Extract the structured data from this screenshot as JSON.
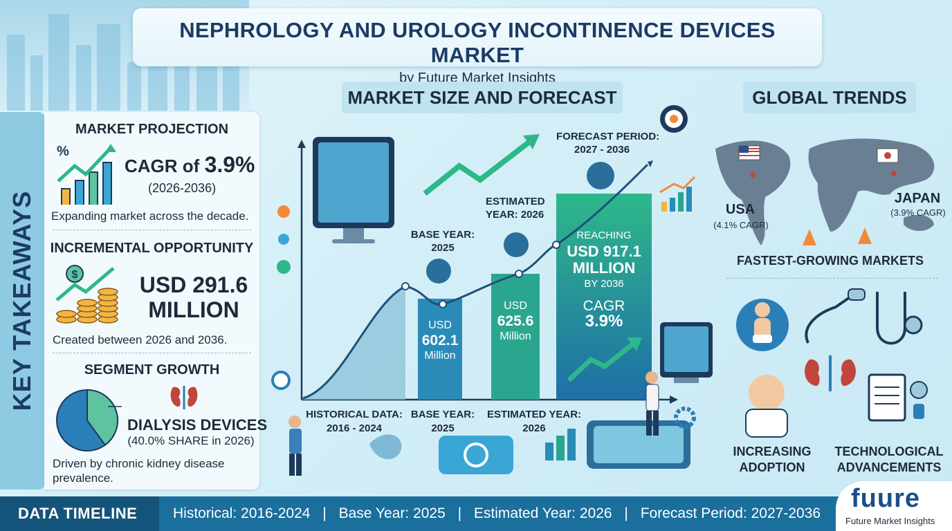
{
  "header": {
    "title": "NEPHROLOGY AND UROLOGY INCONTINENCE DEVICES MARKET",
    "subtitle": "by Future Market Insights"
  },
  "sidebar": {
    "label": "KEY TAKEAWAYS"
  },
  "key_takeaways": {
    "projection": {
      "heading": "MARKET PROJECTION",
      "cagr_prefix": "CAGR of",
      "cagr_value": "3.9%",
      "period": "(2026-2036)",
      "note": "Expanding market across the decade."
    },
    "opportunity": {
      "heading": "INCREMENTAL OPPORTUNITY",
      "value_line1": "USD 291.6",
      "value_line2": "MILLION",
      "note": "Created between 2026 and 2036."
    },
    "segment": {
      "heading": "SEGMENT GROWTH",
      "name": "DIALYSIS DEVICES",
      "share": "(40.0% SHARE in 2026)",
      "share_value": 40.0,
      "note": "Driven by chronic kidney disease prevalence."
    }
  },
  "market_size": {
    "heading": "MARKET SIZE AND FORECAST",
    "base_year": {
      "label": "BASE YEAR:",
      "year": "2025",
      "currency": "USD",
      "value": "602.1",
      "unit": "Million"
    },
    "estimated_year": {
      "label": "ESTIMATED",
      "label2": "YEAR: 2026",
      "currency": "USD",
      "value": "625.6",
      "unit": "Million"
    },
    "forecast": {
      "label": "FORECAST PERIOD:",
      "years": "2027 - 2036",
      "reaching": "REACHING",
      "value_line1": "USD 917.1",
      "value_line2": "MILLION",
      "by": "BY 2036",
      "cagr_label": "CAGR",
      "cagr_value": "3.9%"
    },
    "timeline_labels": {
      "historical": "HISTORICAL DATA:",
      "historical_years": "2016 - 2024",
      "base": "BASE YEAR:",
      "base_year": "2025",
      "estimated": "ESTIMATED YEAR:",
      "estimated_year": "2026"
    }
  },
  "chart_data": {
    "type": "area",
    "x": [
      "2016-2024",
      "2025",
      "2026",
      "2036"
    ],
    "values": [
      null,
      602.1,
      625.6,
      917.1
    ],
    "title": "",
    "xlabel": "",
    "ylabel": ""
  },
  "global_trends": {
    "heading": "GLOBAL TRENDS",
    "usa": {
      "name": "USA",
      "cagr": "(4.1% CAGR)"
    },
    "japan": {
      "name": "JAPAN",
      "cagr": "(3.9% CAGR)"
    },
    "fastest": "FASTEST-GROWING MARKETS",
    "adoption_line1": "INCREASING",
    "adoption_line2": "ADOPTION",
    "tech_line1": "TECHNOLOGICAL",
    "tech_line2": "ADVANCEMENTS"
  },
  "data_timeline": {
    "label": "DATA TIMELINE",
    "items": [
      "Historical: 2016-2024",
      "Base Year: 2025",
      "Estimated Year: 2026",
      "Forecast Period: 2027-2036"
    ],
    "separator": "|"
  },
  "logo": {
    "brand": "fuure",
    "caption": "Future Market Insights"
  },
  "colors": {
    "navy": "#1b3b66",
    "accent_green": "#2eb88a",
    "accent_blue": "#2a7fb8",
    "panel_blue": "#8ecbe3"
  }
}
